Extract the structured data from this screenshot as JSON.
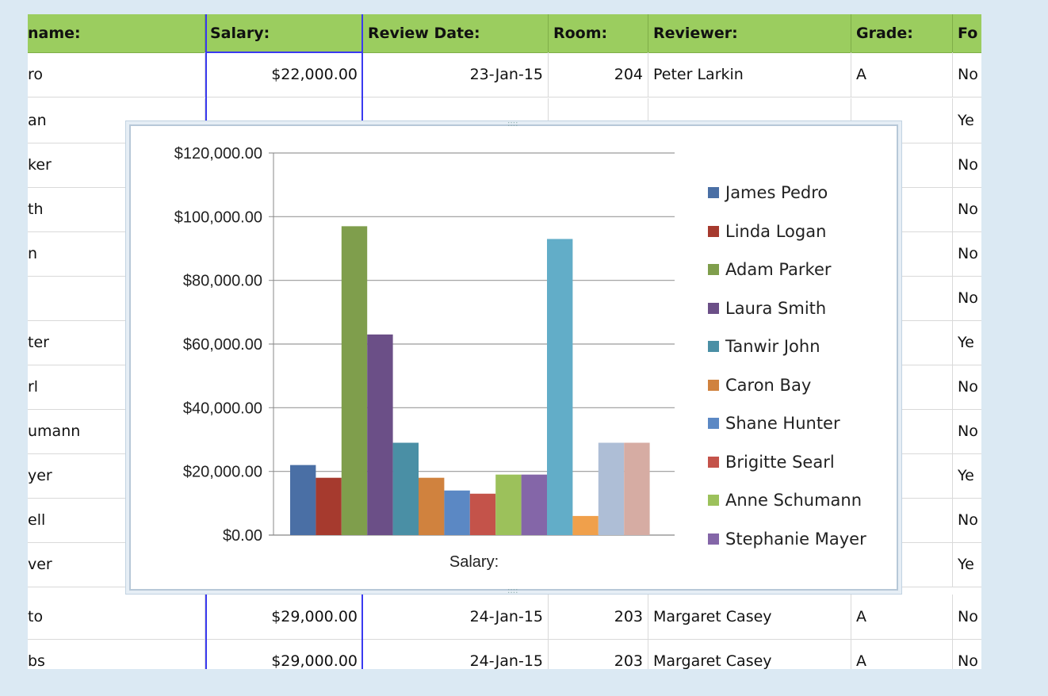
{
  "table": {
    "headers": [
      "name:",
      "Salary:",
      "Review Date:",
      "Room:",
      "Reviewer:",
      "Grade:",
      "Fo"
    ],
    "rows": [
      [
        "ro",
        "$22,000.00",
        "23-Jan-15",
        "204",
        "Peter Larkin",
        "A",
        "No"
      ],
      [
        "an",
        "",
        "",
        "",
        "",
        "",
        "Ye"
      ],
      [
        "ker",
        "",
        "",
        "",
        "",
        "",
        "No"
      ],
      [
        "th",
        "",
        "",
        "",
        "",
        "",
        "No"
      ],
      [
        "n",
        "",
        "",
        "",
        "",
        "",
        "No"
      ],
      [
        "",
        "",
        "",
        "",
        "",
        "",
        "No"
      ],
      [
        "ter",
        "",
        "",
        "",
        "",
        "",
        "Ye"
      ],
      [
        "rl",
        "",
        "",
        "",
        "",
        "",
        "No"
      ],
      [
        "umann",
        "",
        "",
        "",
        "",
        "",
        "No"
      ],
      [
        "yer",
        "",
        "",
        "",
        "",
        "",
        "Ye"
      ],
      [
        "ell",
        "",
        "",
        "",
        "",
        "",
        "No"
      ],
      [
        "ver",
        "",
        "",
        "",
        "",
        "",
        "Ye"
      ],
      [
        "to",
        "$29,000.00",
        "24-Jan-15",
        "203",
        "Margaret Casey",
        "A",
        "No"
      ],
      [
        "bs",
        "$29,000.00",
        "24-Jan-15",
        "203",
        "Margaret Casey",
        "A",
        "No"
      ]
    ]
  },
  "chart_data": {
    "type": "bar",
    "title": "",
    "xlabel": "Salary:",
    "ylabel": "",
    "ylim": [
      0,
      120000
    ],
    "yticks": [
      "$0.00",
      "$20,000.00",
      "$40,000.00",
      "$60,000.00",
      "$80,000.00",
      "$100,000.00",
      "$120,000.00"
    ],
    "categories": [
      "Salary:"
    ],
    "series": [
      {
        "name": "James Pedro",
        "value": 22000,
        "color": "#4a6fa5"
      },
      {
        "name": "Linda Logan",
        "value": 18000,
        "color": "#a63a2e"
      },
      {
        "name": "Adam Parker",
        "value": 97000,
        "color": "#7f9e4c"
      },
      {
        "name": "Laura Smith",
        "value": 63000,
        "color": "#6b4f87"
      },
      {
        "name": "Tanwir John",
        "value": 29000,
        "color": "#4a8fa5"
      },
      {
        "name": "Caron Bay",
        "value": 18000,
        "color": "#d0823e"
      },
      {
        "name": "Shane Hunter",
        "value": 14000,
        "color": "#5b88c4"
      },
      {
        "name": "Brigitte Searl",
        "value": 13000,
        "color": "#c4534a"
      },
      {
        "name": "Anne Schumann",
        "value": 19000,
        "color": "#9cc15b"
      },
      {
        "name": "Stephanie Mayer",
        "value": 19000,
        "color": "#8466a8"
      },
      {
        "name": "",
        "value": 93000,
        "color": "#62adc8"
      },
      {
        "name": "",
        "value": 6000,
        "color": "#f0a04b"
      },
      {
        "name": "",
        "value": 29000,
        "color": "#aebed6"
      },
      {
        "name": "",
        "value": 29000,
        "color": "#d6aca3"
      }
    ]
  }
}
